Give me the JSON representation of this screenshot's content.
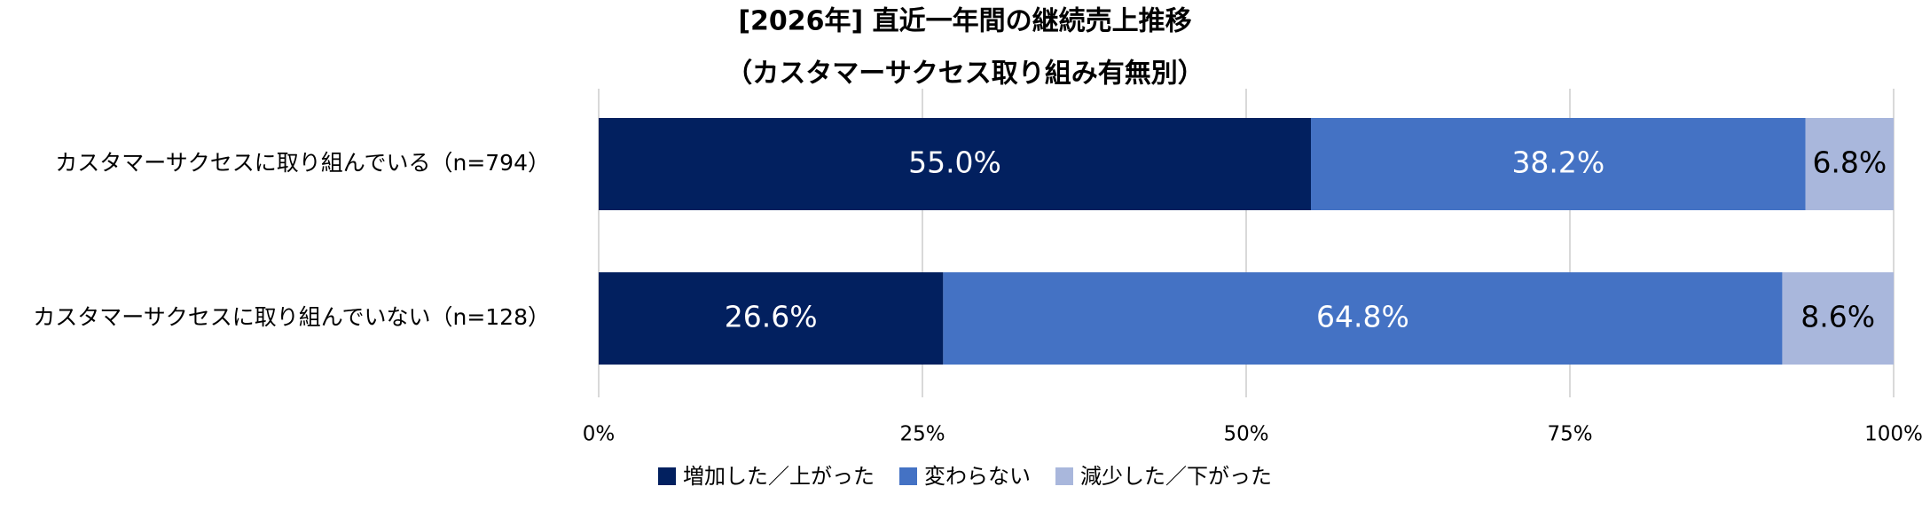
{
  "chart_data": {
    "type": "stacked-bar-horizontal",
    "title": "[2026年] 直近一年間の継続売上推移",
    "subtitle": "（カスタマーサクセス取り組み有無別）",
    "categories": [
      "カスタマーサクセスに取り組んでいる（n=794）",
      "カスタマーサクセスに取り組んでいない（n=128）"
    ],
    "series": [
      {
        "name": "増加した／上がった",
        "color": "#02205f",
        "values": [
          55.0,
          26.6
        ],
        "value_labels": [
          "55.0%",
          "26.6%"
        ]
      },
      {
        "name": "変わらない",
        "color": "#4472c4",
        "values": [
          38.2,
          64.8
        ],
        "value_labels": [
          "38.2%",
          "64.8%"
        ]
      },
      {
        "name": "減少した／下がった",
        "color": "#a9b7dc",
        "values": [
          6.8,
          8.6
        ],
        "value_labels": [
          "6.8%",
          "8.6%"
        ]
      }
    ],
    "xlim": [
      0,
      100
    ],
    "xticks": [
      {
        "value": 0,
        "label": "0%"
      },
      {
        "value": 25,
        "label": "25%"
      },
      {
        "value": 50,
        "label": "50%"
      },
      {
        "value": 75,
        "label": "75%"
      },
      {
        "value": 100,
        "label": "100%"
      }
    ],
    "grid": true,
    "legend": "bottom"
  }
}
